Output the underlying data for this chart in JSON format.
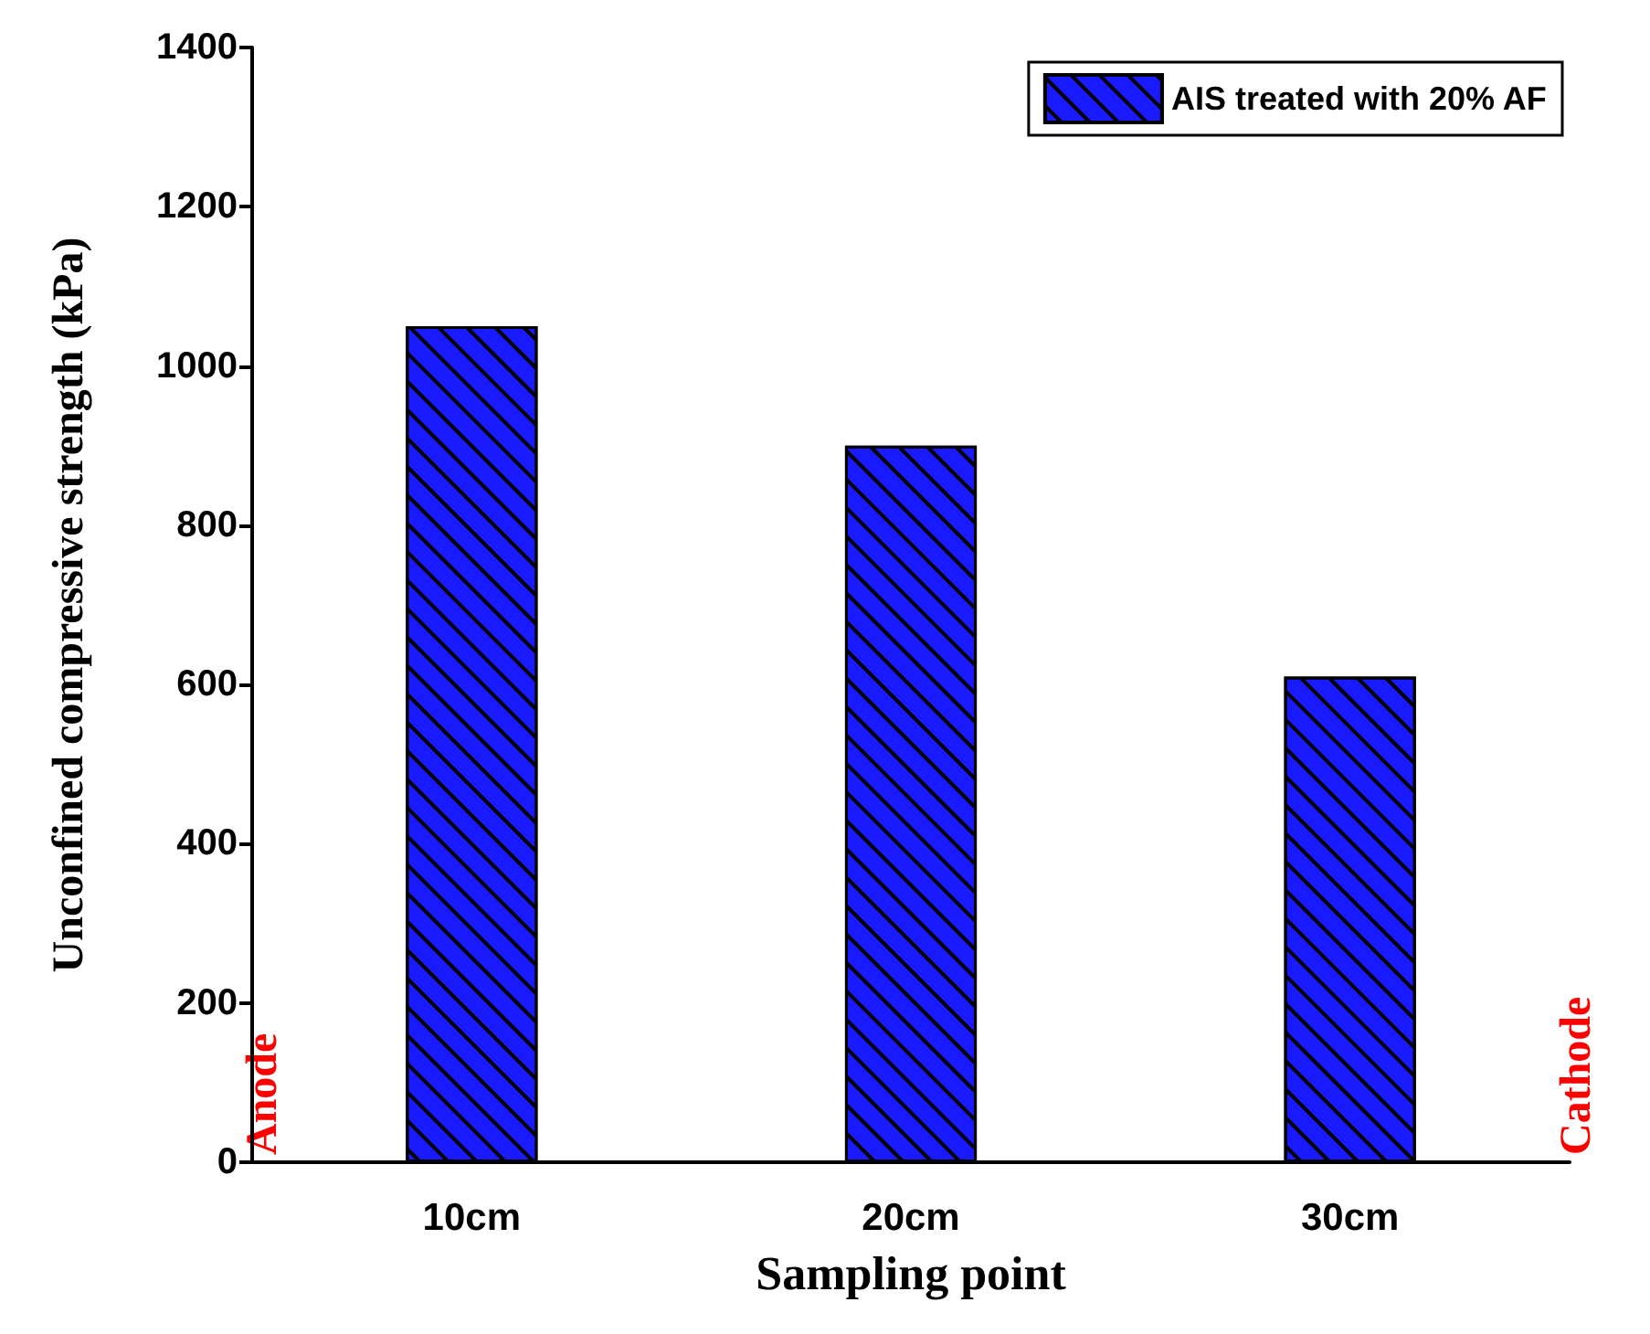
{
  "chart_data": {
    "type": "bar",
    "xlabel": "Sampling point",
    "ylabel": "Unconfined compressive strength (kPa)",
    "categories": [
      "10cm",
      "20cm",
      "30cm"
    ],
    "series": [
      {
        "name": "AIS treated with 20% AF",
        "color": "#1a1aff",
        "values": [
          1050,
          900,
          610
        ]
      }
    ],
    "ylim": [
      0,
      1400
    ],
    "yticks": [
      0,
      200,
      400,
      600,
      800,
      1000,
      1200,
      1400
    ],
    "grid": false,
    "legend": "top right",
    "annotations": [
      "Anode",
      "Cathode"
    ]
  }
}
